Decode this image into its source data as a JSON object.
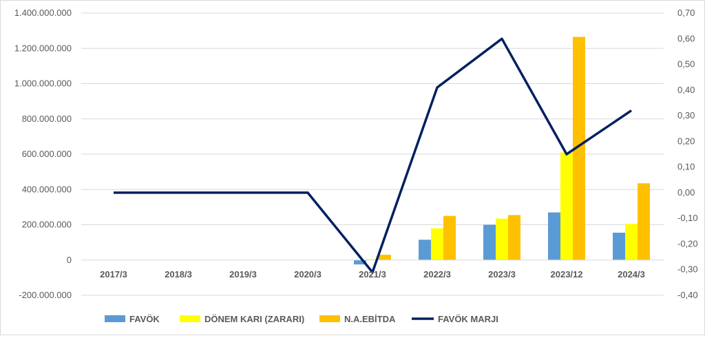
{
  "chart_data": {
    "type": "bar",
    "categories": [
      "2017/3",
      "2018/3",
      "2019/3",
      "2020/3",
      "2021/3",
      "2022/3",
      "2023/3",
      "2023/12",
      "2024/3"
    ],
    "series": [
      {
        "name": "FAVÖK",
        "type": "bar",
        "axis": "left",
        "color": "#5b9bd5",
        "values": [
          0,
          0,
          0,
          0,
          -25000000,
          115000000,
          200000000,
          270000000,
          155000000
        ]
      },
      {
        "name": "DÖNEM KARI (ZARARI)",
        "type": "bar",
        "axis": "left",
        "color": "#ffff00",
        "values": [
          0,
          0,
          0,
          0,
          5000000,
          180000000,
          235000000,
          610000000,
          205000000
        ]
      },
      {
        "name": "N.A.EBİTDA",
        "type": "bar",
        "axis": "left",
        "color": "#ffc000",
        "values": [
          0,
          0,
          0,
          0,
          30000000,
          250000000,
          255000000,
          1265000000,
          435000000
        ]
      },
      {
        "name": "FAVÖK MARJI",
        "type": "line",
        "axis": "right",
        "color": "#002060",
        "values": [
          0,
          0,
          0,
          0,
          -0.31,
          0.41,
          0.6,
          0.15,
          0.32
        ]
      }
    ],
    "y_left": {
      "min": -200000000,
      "max": 1400000000,
      "ticks": [
        {
          "value": 1400000000,
          "label": "1.400.000.000"
        },
        {
          "value": 1200000000,
          "label": "1.200.000.000"
        },
        {
          "value": 1000000000,
          "label": "1.000.000.000"
        },
        {
          "value": 800000000,
          "label": "800.000.000"
        },
        {
          "value": 600000000,
          "label": "600.000.000"
        },
        {
          "value": 400000000,
          "label": "400.000.000"
        },
        {
          "value": 200000000,
          "label": "200.000.000"
        },
        {
          "value": 0,
          "label": "0"
        },
        {
          "value": -200000000,
          "label": "-200.000.000"
        }
      ]
    },
    "y_right": {
      "min": -0.4,
      "max": 0.7,
      "ticks": [
        {
          "value": 0.7,
          "label": "0,70"
        },
        {
          "value": 0.6,
          "label": "0,60"
        },
        {
          "value": 0.5,
          "label": "0,50"
        },
        {
          "value": 0.4,
          "label": "0,40"
        },
        {
          "value": 0.3,
          "label": "0,30"
        },
        {
          "value": 0.2,
          "label": "0,20"
        },
        {
          "value": 0.1,
          "label": "0,10"
        },
        {
          "value": 0.0,
          "label": "0,00"
        },
        {
          "value": -0.1,
          "label": "-0,10"
        },
        {
          "value": -0.2,
          "label": "-0,20"
        },
        {
          "value": -0.3,
          "label": "-0,30"
        },
        {
          "value": -0.4,
          "label": "-0,40"
        }
      ]
    },
    "grid": true,
    "legend_position": "bottom"
  }
}
